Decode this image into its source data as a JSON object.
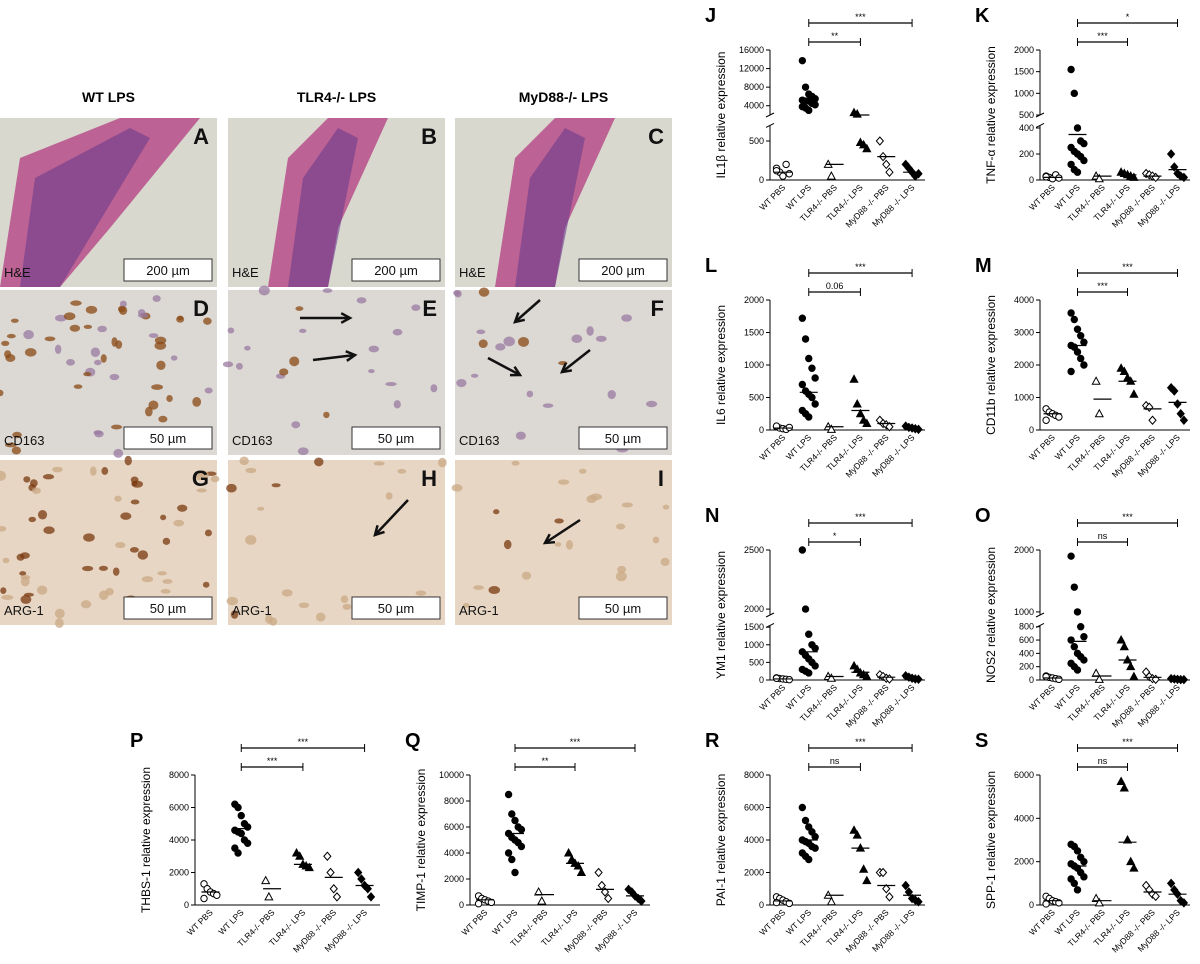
{
  "image_panels": {
    "columns": [
      "WT LPS",
      "TLR4-/- LPS",
      "MyD88-/- LPS"
    ],
    "panels": [
      {
        "letter": "A",
        "stain": "H&E",
        "scale": "200 µm"
      },
      {
        "letter": "B",
        "stain": "H&E",
        "scale": "200 µm"
      },
      {
        "letter": "C",
        "stain": "H&E",
        "scale": "200 µm"
      },
      {
        "letter": "D",
        "stain": "CD163",
        "scale": "50 µm"
      },
      {
        "letter": "E",
        "stain": "CD163",
        "scale": "50 µm"
      },
      {
        "letter": "F",
        "stain": "CD163",
        "scale": "50 µm"
      },
      {
        "letter": "G",
        "stain": "ARG-1",
        "scale": "50 µm"
      },
      {
        "letter": "H",
        "stain": "ARG-1",
        "scale": "50 µm"
      },
      {
        "letter": "I",
        "stain": "ARG-1",
        "scale": "50 µm"
      }
    ]
  },
  "chart_data": [
    {
      "type": "strip",
      "title": "J",
      "ylabel": "IL1β relative expression",
      "categories": [
        "WT PBS",
        "WT LPS",
        "TLR4-/- PBS",
        "TLR4-/- LPS",
        "MyD88 -/- PBS",
        "MyD88 -/- LPS"
      ],
      "markers": [
        "open-circle",
        "circle",
        "open-triangle",
        "triangle",
        "open-diamond",
        "diamond"
      ],
      "values": [
        [
          150,
          100,
          50,
          200,
          80,
          120
        ],
        [
          13700,
          8000,
          6500,
          6000,
          5500,
          5200,
          5000,
          5000,
          4500,
          4200,
          3800,
          3500,
          3000
        ],
        [
          200,
          50
        ],
        [
          2500,
          2200,
          480,
          450,
          400
        ],
        [
          500,
          300,
          200,
          100
        ],
        [
          200,
          150,
          100,
          50,
          80
        ]
      ],
      "means": [
        100,
        5000,
        200,
        2000,
        300,
        100
      ],
      "significance": [
        "**",
        "***"
      ],
      "ylim": [
        0,
        16000
      ],
      "ybreak": [
        700,
        2000
      ],
      "yticks": [
        0,
        500,
        4000,
        8000,
        12000,
        16000
      ]
    },
    {
      "type": "strip",
      "title": "K",
      "ylabel": "TNF-α relative expression",
      "categories": [
        "WT PBS",
        "WT LPS",
        "TLR4-/- PBS",
        "TLR4-/- LPS",
        "MyD88 -/- PBS",
        "MyD88 -/- LPS"
      ],
      "markers": [
        "open-circle",
        "circle",
        "open-triangle",
        "triangle",
        "open-diamond",
        "diamond"
      ],
      "values": [
        [
          30,
          20,
          10,
          40,
          15,
          25
        ],
        [
          1550,
          1000,
          400,
          300,
          280,
          250,
          220,
          200,
          180,
          150,
          120,
          80,
          60
        ],
        [
          30,
          10
        ],
        [
          60,
          50,
          40,
          30,
          20
        ],
        [
          50,
          40,
          30,
          20
        ],
        [
          200,
          100,
          50,
          30,
          20
        ]
      ],
      "means": [
        20,
        350,
        30,
        40,
        30,
        80
      ],
      "significance": [
        "***",
        "*"
      ],
      "ylim": [
        0,
        2000
      ],
      "ybreak": [
        420,
        500
      ],
      "yticks": [
        0,
        200,
        400,
        500,
        1000,
        1500,
        2000
      ]
    },
    {
      "type": "strip",
      "title": "L",
      "ylabel": "IL6 relative expression",
      "categories": [
        "WT PBS",
        "WT LPS",
        "TLR4-/- PBS",
        "TLR4-/- LPS",
        "MyD88 -/- PBS",
        "MyD88 -/- LPS"
      ],
      "markers": [
        "open-circle",
        "circle",
        "open-triangle",
        "triangle",
        "open-diamond",
        "diamond"
      ],
      "values": [
        [
          50,
          30,
          20,
          10,
          40,
          60
        ],
        [
          1720,
          1400,
          1100,
          950,
          800,
          700,
          600,
          550,
          500,
          400,
          300,
          250,
          200
        ],
        [
          50,
          10
        ],
        [
          780,
          400,
          250,
          150,
          100
        ],
        [
          150,
          100,
          80,
          50
        ],
        [
          60,
          40,
          30,
          20,
          10
        ]
      ],
      "means": [
        30,
        580,
        50,
        300,
        100,
        30
      ],
      "significance": [
        "0.06",
        "***"
      ],
      "ylim": [
        0,
        2000
      ],
      "yticks": [
        0,
        500,
        1000,
        1500,
        2000
      ]
    },
    {
      "type": "strip",
      "title": "M",
      "ylabel": "CD11b relative expression",
      "categories": [
        "WT PBS",
        "WT LPS",
        "TLR4-/- PBS",
        "TLR4-/- LPS",
        "MyD88 -/- PBS",
        "MyD88 -/- LPS"
      ],
      "markers": [
        "open-circle",
        "circle",
        "open-triangle",
        "triangle",
        "open-diamond",
        "diamond"
      ],
      "values": [
        [
          650,
          550,
          500,
          450,
          400,
          300
        ],
        [
          3600,
          3400,
          3100,
          2900,
          2700,
          2600,
          2550,
          2400,
          2200,
          2000,
          1800
        ],
        [
          1500,
          500
        ],
        [
          1900,
          1800,
          1600,
          1500,
          1100
        ],
        [
          750,
          700,
          300
        ],
        [
          1300,
          1200,
          800,
          500,
          300
        ]
      ],
      "means": [
        500,
        2600,
        950,
        1500,
        650,
        850
      ],
      "significance": [
        "***",
        "***"
      ],
      "ylim": [
        0,
        4000
      ],
      "yticks": [
        0,
        1000,
        2000,
        3000,
        4000
      ]
    },
    {
      "type": "strip",
      "title": "N",
      "ylabel": "YM1 relative expression",
      "categories": [
        "WT PBS",
        "WT LPS",
        "TLR4-/- PBS",
        "TLR4-/- LPS",
        "MyD88 -/- PBS",
        "MyD88 -/- LPS"
      ],
      "markers": [
        "open-circle",
        "circle",
        "open-triangle",
        "triangle",
        "open-diamond",
        "diamond"
      ],
      "values": [
        [
          60,
          40,
          30,
          20,
          10,
          50
        ],
        [
          2500,
          2000,
          1300,
          1000,
          900,
          800,
          700,
          600,
          500,
          400,
          300,
          250,
          200
        ],
        [
          100,
          50
        ],
        [
          400,
          300,
          200,
          150,
          100
        ],
        [
          150,
          100,
          50,
          30
        ],
        [
          120,
          80,
          50,
          30,
          20
        ]
      ],
      "means": [
        30,
        800,
        100,
        220,
        80,
        60
      ],
      "significance": [
        "*",
        "***"
      ],
      "ylim": [
        0,
        2500
      ],
      "ybreak": [
        1550,
        1950
      ],
      "yticks": [
        0,
        500,
        1000,
        1500,
        2000,
        2500
      ]
    },
    {
      "type": "strip",
      "title": "O",
      "ylabel": "NOS2 relative expression",
      "categories": [
        "WT PBS",
        "WT LPS",
        "TLR4-/- PBS",
        "TLR4-/- LPS",
        "MyD88 -/- PBS",
        "MyD88 -/- LPS"
      ],
      "markers": [
        "open-circle",
        "circle",
        "open-triangle",
        "triangle",
        "open-diamond",
        "diamond"
      ],
      "values": [
        [
          60,
          40,
          30,
          20,
          10,
          50
        ],
        [
          1900,
          1400,
          1000,
          800,
          650,
          600,
          500,
          400,
          350,
          300,
          250,
          200,
          150
        ],
        [
          100,
          10
        ],
        [
          600,
          500,
          300,
          200,
          50
        ],
        [
          120,
          50,
          20,
          10
        ],
        [
          20,
          15,
          10,
          5,
          5
        ]
      ],
      "means": [
        30,
        580,
        60,
        300,
        40,
        10
      ],
      "significance": [
        "ns",
        "***"
      ],
      "ylim": [
        0,
        2000
      ],
      "ybreak": [
        820,
        950
      ],
      "yticks": [
        0,
        200,
        400,
        600,
        800,
        1000,
        2000
      ]
    },
    {
      "type": "strip",
      "title": "P",
      "ylabel": "THBS-1 relative expression",
      "categories": [
        "WT PBS",
        "WT LPS",
        "TLR4-/- PBS",
        "TLR4-/- LPS",
        "MyD88 -/- PBS",
        "MyD88 -/- LPS"
      ],
      "markers": [
        "open-circle",
        "circle",
        "open-triangle",
        "triangle",
        "open-diamond",
        "diamond"
      ],
      "values": [
        [
          1300,
          1000,
          800,
          700,
          600,
          400
        ],
        [
          6200,
          6000,
          5500,
          5000,
          4800,
          4600,
          4500,
          4400,
          4000,
          3800,
          3500,
          3200
        ],
        [
          1500,
          500
        ],
        [
          3200,
          3000,
          2500,
          2400,
          2300
        ],
        [
          3000,
          2000,
          1000,
          500
        ],
        [
          2000,
          1600,
          1200,
          1000,
          500
        ]
      ],
      "means": [
        800,
        4700,
        1000,
        2500,
        1700,
        1200
      ],
      "significance": [
        "***",
        "***"
      ],
      "ylim": [
        0,
        8000
      ],
      "yticks": [
        0,
        2000,
        4000,
        6000,
        8000
      ]
    },
    {
      "type": "strip",
      "title": "Q",
      "ylabel": "TIMP-1 relative expression",
      "categories": [
        "WT PBS",
        "WT LPS",
        "TLR4-/- PBS",
        "TLR4-/- LPS",
        "MyD88 -/- PBS",
        "MyD88 -/- LPS"
      ],
      "markers": [
        "open-circle",
        "circle",
        "open-triangle",
        "triangle",
        "open-diamond",
        "diamond"
      ],
      "values": [
        [
          700,
          500,
          400,
          300,
          200,
          100
        ],
        [
          8500,
          7000,
          6500,
          6000,
          5800,
          5500,
          5200,
          5000,
          4800,
          4500,
          4000,
          3500,
          2500
        ],
        [
          1000,
          300
        ],
        [
          4000,
          3500,
          3200,
          3000,
          2500
        ],
        [
          2500,
          1500,
          1000,
          500
        ],
        [
          1200,
          1000,
          700,
          500,
          300
        ]
      ],
      "means": [
        400,
        5500,
        800,
        3200,
        1200,
        700
      ],
      "significance": [
        "**",
        "***"
      ],
      "ylim": [
        0,
        10000
      ],
      "yticks": [
        0,
        2000,
        4000,
        6000,
        8000,
        10000
      ]
    },
    {
      "type": "strip",
      "title": "R",
      "ylabel": "PAI-1 relative expression",
      "categories": [
        "WT PBS",
        "WT LPS",
        "TLR4-/- PBS",
        "TLR4-/- LPS",
        "MyD88 -/- PBS",
        "MyD88 -/- LPS"
      ],
      "markers": [
        "open-circle",
        "circle",
        "open-triangle",
        "triangle",
        "open-diamond",
        "diamond"
      ],
      "values": [
        [
          500,
          400,
          300,
          200,
          100,
          150
        ],
        [
          6000,
          5200,
          4800,
          4500,
          4200,
          4000,
          3900,
          3800,
          3600,
          3500,
          3200,
          3000,
          2800
        ],
        [
          600,
          200
        ],
        [
          4600,
          4300,
          3500,
          2200,
          1500
        ],
        [
          2000,
          2000,
          1000,
          500
        ],
        [
          1200,
          800,
          400,
          300,
          200
        ]
      ],
      "means": [
        250,
        4000,
        600,
        3500,
        1200,
        600
      ],
      "significance": [
        "ns",
        "***"
      ],
      "ylim": [
        0,
        8000
      ],
      "yticks": [
        0,
        2000,
        4000,
        6000,
        8000
      ]
    },
    {
      "type": "strip",
      "title": "S",
      "ylabel": "SPP-1 relative expression",
      "categories": [
        "WT PBS",
        "WT LPS",
        "TLR4-/- PBS",
        "TLR4-/- LPS",
        "MyD88 -/- PBS",
        "MyD88 -/- LPS"
      ],
      "markers": [
        "open-circle",
        "circle",
        "open-triangle",
        "triangle",
        "open-diamond",
        "diamond"
      ],
      "values": [
        [
          400,
          300,
          200,
          150,
          100,
          50
        ],
        [
          2800,
          2700,
          2500,
          2200,
          2000,
          1900,
          1800,
          1700,
          1500,
          1300,
          1200,
          1000,
          700
        ],
        [
          300,
          100
        ],
        [
          5700,
          5400,
          3000,
          2000,
          1700
        ],
        [
          900,
          700,
          500,
          400
        ],
        [
          1000,
          700,
          500,
          200,
          100
        ]
      ],
      "means": [
        200,
        1800,
        200,
        2900,
        600,
        500
      ],
      "significance": [
        "ns",
        "***"
      ],
      "ylim": [
        0,
        6000
      ],
      "yticks": [
        0,
        2000,
        4000,
        6000
      ]
    }
  ]
}
